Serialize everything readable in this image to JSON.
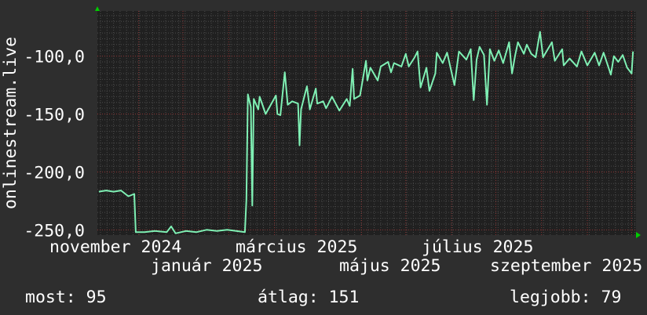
{
  "chart_data": {
    "type": "line",
    "title": "",
    "ylabel": "onlinestream.live",
    "xlabel": "",
    "xlim": [
      "2024-10-04",
      "2025-10-04"
    ],
    "ylim": [
      -254.5,
      -61
    ],
    "grid": true,
    "y_ticks": [
      {
        "value": -100,
        "label": "-100,0"
      },
      {
        "value": -150,
        "label": "-150,0"
      },
      {
        "value": -200,
        "label": "-200,0"
      },
      {
        "value": -250,
        "label": "-250,0"
      }
    ],
    "x_ticks": [
      {
        "date": "2024-11-01",
        "label": "november 2024"
      },
      {
        "date": "2025-01-01",
        "label": "január 2025"
      },
      {
        "date": "2025-03-01",
        "label": "március 2025"
      },
      {
        "date": "2025-05-01",
        "label": "május 2025"
      },
      {
        "date": "2025-07-01",
        "label": "július 2025"
      },
      {
        "date": "2025-09-01",
        "label": "szeptember 2025"
      }
    ],
    "month_gridlines": [
      "2024-11-01",
      "2024-12-01",
      "2025-01-01",
      "2025-02-01",
      "2025-03-01",
      "2025-04-01",
      "2025-05-01",
      "2025-06-01",
      "2025-07-01",
      "2025-08-01",
      "2025-09-01",
      "2025-10-01"
    ],
    "colors": {
      "line": "#7ff0b4",
      "background": "#2e2e2e",
      "plot_background": "#202020",
      "major_grid": "#8a3434",
      "minor_grid": "#4a4a4a",
      "arrow": "#00cc00"
    },
    "series": [
      {
        "points": [
          [
            "2024-10-05",
            -217
          ],
          [
            "2024-10-10",
            -216
          ],
          [
            "2024-10-15",
            -217
          ],
          [
            "2024-10-20",
            -216
          ],
          [
            "2024-10-25",
            -221
          ],
          [
            "2024-10-29",
            -219
          ],
          [
            "2024-10-30",
            -252
          ],
          [
            "2024-11-05",
            -252
          ],
          [
            "2024-11-12",
            -251
          ],
          [
            "2024-11-20",
            -252
          ],
          [
            "2024-11-23",
            -247
          ],
          [
            "2024-11-26",
            -253
          ],
          [
            "2024-12-03",
            -251
          ],
          [
            "2024-12-10",
            -252
          ],
          [
            "2024-12-17",
            -250
          ],
          [
            "2024-12-24",
            -251
          ],
          [
            "2024-12-31",
            -250
          ],
          [
            "2025-01-06",
            -251
          ],
          [
            "2025-01-12",
            -252
          ],
          [
            "2025-01-13",
            -224
          ],
          [
            "2025-01-14",
            -133
          ],
          [
            "2025-01-16",
            -144
          ],
          [
            "2025-01-17",
            -229
          ],
          [
            "2025-01-18",
            -137
          ],
          [
            "2025-01-21",
            -146
          ],
          [
            "2025-01-22",
            -135
          ],
          [
            "2025-01-26",
            -150
          ],
          [
            "2025-02-02",
            -134
          ],
          [
            "2025-02-03",
            -150
          ],
          [
            "2025-02-05",
            -151
          ],
          [
            "2025-02-08",
            -114
          ],
          [
            "2025-02-10",
            -142
          ],
          [
            "2025-02-13",
            -139
          ],
          [
            "2025-02-17",
            -141
          ],
          [
            "2025-02-18",
            -177
          ],
          [
            "2025-02-19",
            -146
          ],
          [
            "2025-02-23",
            -126
          ],
          [
            "2025-02-25",
            -146
          ],
          [
            "2025-03-01",
            -128
          ],
          [
            "2025-03-02",
            -141
          ],
          [
            "2025-03-06",
            -139
          ],
          [
            "2025-03-08",
            -145
          ],
          [
            "2025-03-12",
            -135
          ],
          [
            "2025-03-17",
            -147
          ],
          [
            "2025-03-22",
            -137
          ],
          [
            "2025-03-24",
            -143
          ],
          [
            "2025-03-26",
            -111
          ],
          [
            "2025-03-27",
            -137
          ],
          [
            "2025-03-31",
            -134
          ],
          [
            "2025-04-04",
            -104
          ],
          [
            "2025-04-05",
            -121
          ],
          [
            "2025-04-07",
            -110
          ],
          [
            "2025-04-12",
            -121
          ],
          [
            "2025-04-14",
            -109
          ],
          [
            "2025-04-19",
            -105
          ],
          [
            "2025-04-21",
            -114
          ],
          [
            "2025-04-23",
            -106
          ],
          [
            "2025-04-28",
            -109
          ],
          [
            "2025-05-01",
            -98
          ],
          [
            "2025-05-03",
            -109
          ],
          [
            "2025-05-07",
            -101
          ],
          [
            "2025-05-09",
            -96
          ],
          [
            "2025-05-11",
            -127
          ],
          [
            "2025-05-15",
            -110
          ],
          [
            "2025-05-17",
            -130
          ],
          [
            "2025-05-21",
            -115
          ],
          [
            "2025-05-22",
            -97
          ],
          [
            "2025-05-26",
            -106
          ],
          [
            "2025-05-29",
            -97
          ],
          [
            "2025-06-03",
            -125
          ],
          [
            "2025-06-06",
            -96
          ],
          [
            "2025-06-11",
            -103
          ],
          [
            "2025-06-14",
            -94
          ],
          [
            "2025-06-16",
            -138
          ],
          [
            "2025-06-18",
            -103
          ],
          [
            "2025-06-20",
            -92
          ],
          [
            "2025-06-23",
            -99
          ],
          [
            "2025-06-25",
            -142
          ],
          [
            "2025-06-27",
            -94
          ],
          [
            "2025-06-30",
            -104
          ],
          [
            "2025-07-03",
            -95
          ],
          [
            "2025-07-06",
            -106
          ],
          [
            "2025-07-10",
            -88
          ],
          [
            "2025-07-12",
            -115
          ],
          [
            "2025-07-14",
            -100
          ],
          [
            "2025-07-16",
            -88
          ],
          [
            "2025-07-20",
            -98
          ],
          [
            "2025-07-22",
            -90
          ],
          [
            "2025-07-25",
            -98
          ],
          [
            "2025-07-28",
            -101
          ],
          [
            "2025-07-31",
            -79
          ],
          [
            "2025-08-02",
            -101
          ],
          [
            "2025-08-08",
            -88
          ],
          [
            "2025-08-10",
            -104
          ],
          [
            "2025-08-15",
            -94
          ],
          [
            "2025-08-16",
            -108
          ],
          [
            "2025-08-20",
            -102
          ],
          [
            "2025-08-25",
            -109
          ],
          [
            "2025-08-28",
            -96
          ],
          [
            "2025-09-01",
            -108
          ],
          [
            "2025-09-06",
            -97
          ],
          [
            "2025-09-09",
            -108
          ],
          [
            "2025-09-12",
            -97
          ],
          [
            "2025-09-17",
            -116
          ],
          [
            "2025-09-19",
            -100
          ],
          [
            "2025-09-22",
            -105
          ],
          [
            "2025-09-25",
            -99
          ],
          [
            "2025-09-28",
            -110
          ],
          [
            "2025-10-01",
            -115
          ],
          [
            "2025-10-02",
            -96
          ]
        ]
      }
    ]
  },
  "legend": {
    "current_label": "most: 95",
    "average_label": "átlag: 151",
    "best_label": "legjobb: 79"
  }
}
